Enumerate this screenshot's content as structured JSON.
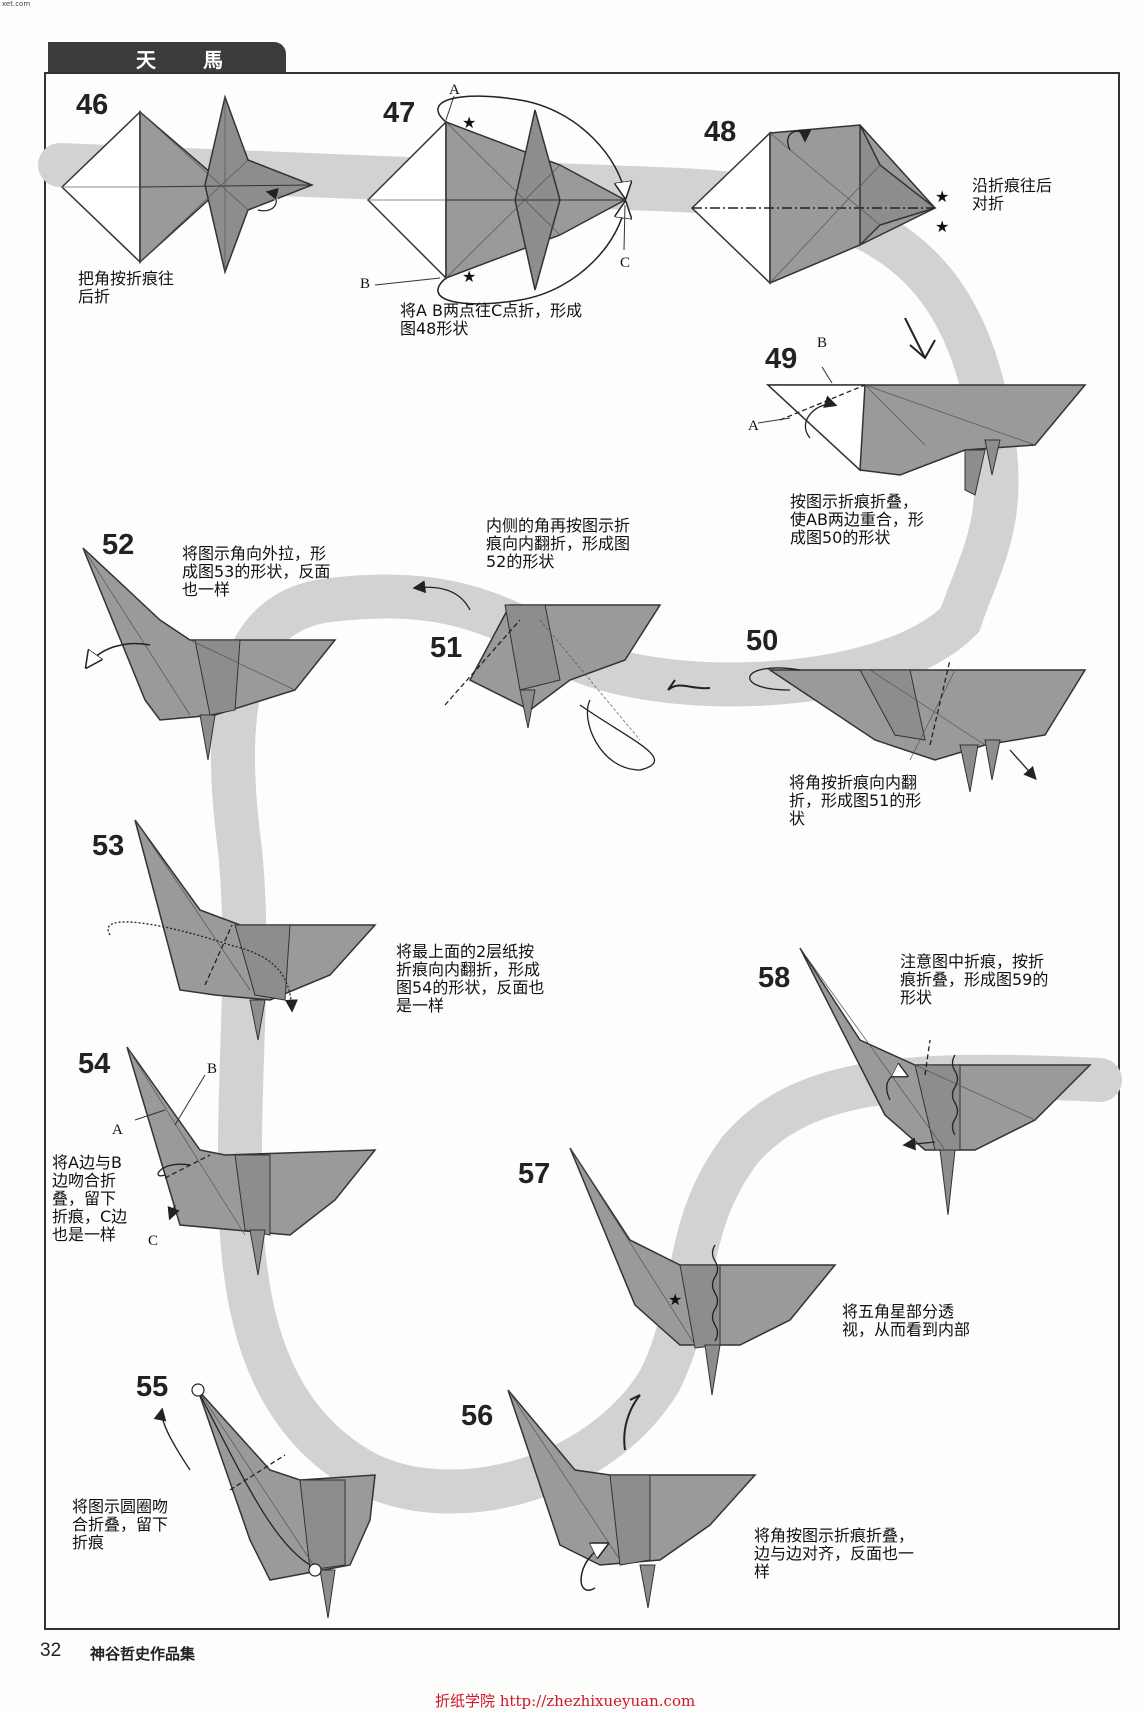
{
  "site_tag": "xet.com",
  "title": "天 馬",
  "steps": [
    {
      "number": "46",
      "instruction": "把角按折痕往\n后折"
    },
    {
      "number": "47",
      "instruction": "将A B两点往C点折，形成\n图48形状",
      "labels": [
        "A",
        "B",
        "C"
      ]
    },
    {
      "number": "48",
      "instruction": "沿折痕往后\n对折"
    },
    {
      "number": "49",
      "instruction": "按图示折痕折叠，\n使AB两边重合，形\n成图50的形状",
      "labels": [
        "A",
        "B"
      ]
    },
    {
      "number": "50",
      "instruction": "将角按折痕向内翻\n折，形成图51的形\n状"
    },
    {
      "number": "51",
      "instruction": "内侧的角再按图示折\n痕向内翻折，形成图\n52的形状"
    },
    {
      "number": "52",
      "instruction": "将图示角向外拉，形\n成图53的形状，反面\n也一样"
    },
    {
      "number": "53",
      "instruction": "将最上面的2层纸按\n折痕向内翻折，形成\n图54的形状，反面也\n是一样"
    },
    {
      "number": "54",
      "instruction": "将A边与B\n边吻合折\n叠，留下\n折痕，C边\n也是一样",
      "labels": [
        "A",
        "B",
        "C"
      ]
    },
    {
      "number": "55",
      "instruction": "将图示圆圈吻\n合折叠，留下\n折痕"
    },
    {
      "number": "56",
      "instruction": "将角按图示折痕折叠，\n边与边对齐，反面也一\n样"
    },
    {
      "number": "57",
      "instruction": "将五角星部分透\n视，从而看到内部"
    },
    {
      "number": "58",
      "instruction": "注意图中折痕，按折\n痕折叠，形成图59的\n形状"
    }
  ],
  "footer": {
    "page_number": "32",
    "book_title": "神谷哲史作品集"
  },
  "watermark": "折纸学院 http://zhezhixueyuan.com",
  "colors": {
    "paper": "#8f8f8f",
    "paper_light": "#b4b4b4",
    "path": "#d2d2d2",
    "tab": "#3c3c3c",
    "watermark": "#d0142a"
  }
}
